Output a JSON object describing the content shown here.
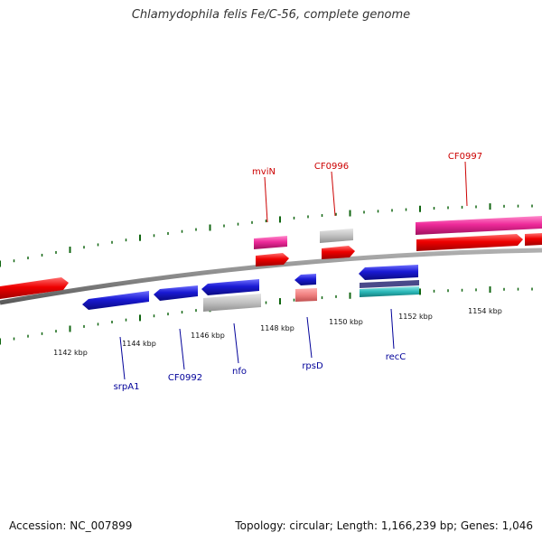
{
  "title": "Chlamydophila felis Fe/C-56, complete genome",
  "footer": {
    "accession": "Accession: NC_007899",
    "stats": "Topology: circular; Length: 1,166,239 bp; Genes: 1,046"
  },
  "colors": {
    "forward_gene": "#ee0000",
    "reverse_gene": "#1a1ad4",
    "forward_label": "#cc0000",
    "reverse_label": "#000099",
    "backbone": "#8a8a8a",
    "tick": "#116611",
    "rna": "#ee2a9a",
    "pseudo": "#c0c0c0",
    "misc_feature": "#2ab8b8"
  },
  "scale": {
    "unit": "kbp",
    "labels": [
      "1142 kbp",
      "1144 kbp",
      "1146 kbp",
      "1148 kbp",
      "1150 kbp",
      "1152 kbp",
      "1154 kbp"
    ]
  },
  "gene_labels": [
    {
      "name": "mviN",
      "strand": "forward"
    },
    {
      "name": "CF0996",
      "strand": "forward"
    },
    {
      "name": "CF0997",
      "strand": "forward"
    },
    {
      "name": "srpA1",
      "strand": "reverse"
    },
    {
      "name": "CF0992",
      "strand": "reverse"
    },
    {
      "name": "nfo",
      "strand": "reverse"
    },
    {
      "name": "rpsD",
      "strand": "reverse"
    },
    {
      "name": "recC",
      "strand": "reverse"
    }
  ]
}
